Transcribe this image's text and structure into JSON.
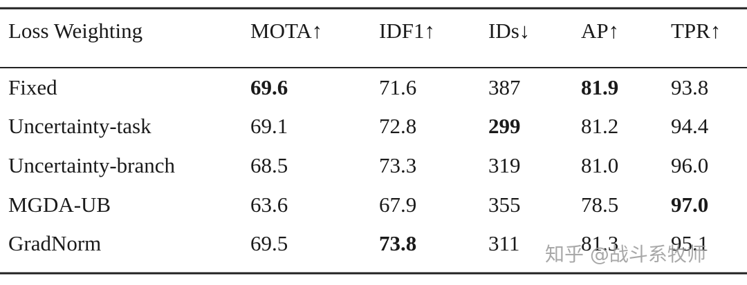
{
  "table": {
    "header": [
      "Loss Weighting",
      "MOTA↑",
      "IDF1↑",
      "IDs↓",
      "AP↑",
      "TPR↑"
    ],
    "rows": [
      {
        "cells": [
          "Fixed",
          "69.6",
          "71.6",
          "387",
          "81.9",
          "93.8"
        ],
        "bold": [
          1,
          4
        ]
      },
      {
        "cells": [
          "Uncertainty-task",
          "69.1",
          "72.8",
          "299",
          "81.2",
          "94.4"
        ],
        "bold": [
          3
        ]
      },
      {
        "cells": [
          "Uncertainty-branch",
          "68.5",
          "73.3",
          "319",
          "81.0",
          "96.0"
        ],
        "bold": []
      },
      {
        "cells": [
          "MGDA-UB",
          "63.6",
          "67.9",
          "355",
          "78.5",
          "97.0"
        ],
        "bold": [
          5
        ]
      },
      {
        "cells": [
          "GradNorm",
          "69.5",
          "73.8",
          "311",
          "81.3",
          "95.1"
        ],
        "bold": [
          2
        ]
      }
    ]
  },
  "watermark": "知乎 @战斗系牧师"
}
